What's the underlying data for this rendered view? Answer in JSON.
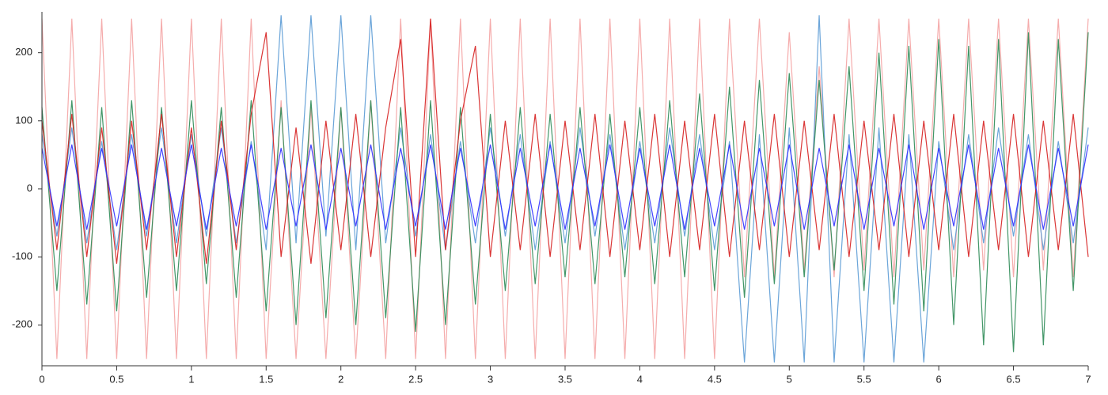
{
  "chart_data": {
    "type": "line",
    "x": [
      0,
      0.1,
      0.2,
      0.3,
      0.4,
      0.5,
      0.6,
      0.7,
      0.8,
      0.9,
      1,
      1.1,
      1.2,
      1.3,
      1.4,
      1.5,
      1.6,
      1.7,
      1.8,
      1.9,
      2,
      2.1,
      2.2,
      2.3,
      2.4,
      2.5,
      2.6,
      2.7,
      2.8,
      2.9,
      3,
      3.1,
      3.2,
      3.3,
      3.4,
      3.5,
      3.6,
      3.7,
      3.8,
      3.9,
      4,
      4.1,
      4.2,
      4.3,
      4.4,
      4.5,
      4.6,
      4.7,
      4.8,
      4.9,
      5,
      5.1,
      5.2,
      5.3,
      5.4,
      5.5,
      5.6,
      5.7,
      5.8,
      5.9,
      6,
      6.1,
      6.2,
      6.3,
      6.4,
      6.5,
      6.6,
      6.7,
      6.8,
      6.9,
      7
    ],
    "series": [
      {
        "color": "#f4a3a3",
        "values": [
          250,
          -250,
          250,
          -250,
          250,
          -250,
          250,
          -250,
          250,
          -250,
          250,
          -250,
          250,
          -250,
          250,
          -250,
          130,
          -250,
          120,
          -250,
          120,
          -250,
          130,
          -250,
          250,
          -250,
          250,
          -250,
          250,
          -250,
          250,
          -250,
          250,
          -250,
          250,
          -250,
          250,
          -250,
          250,
          -250,
          250,
          -250,
          250,
          -250,
          250,
          -250,
          250,
          -130,
          250,
          -130,
          230,
          -120,
          180,
          -130,
          250,
          -120,
          250,
          -130,
          250,
          -120,
          250,
          -130,
          250,
          -120,
          250,
          -130,
          250,
          -120,
          250,
          -130,
          250
        ]
      },
      {
        "color": "#5b9bd5",
        "values": [
          80,
          -70,
          90,
          -80,
          70,
          -90,
          80,
          -70,
          90,
          -80,
          80,
          -70,
          90,
          -80,
          70,
          -90,
          255,
          -80,
          255,
          -70,
          255,
          -90,
          255,
          -80,
          90,
          -70,
          80,
          -90,
          70,
          -80,
          90,
          -70,
          80,
          -90,
          70,
          -80,
          90,
          -70,
          80,
          -90,
          70,
          -80,
          90,
          -70,
          80,
          -90,
          70,
          -255,
          80,
          -255,
          90,
          -255,
          255,
          -255,
          80,
          -255,
          90,
          -255,
          80,
          -255,
          70,
          -90,
          80,
          -80,
          90,
          -70,
          80,
          -90,
          70,
          -80,
          90
        ]
      },
      {
        "color": "#2e8b57",
        "values": [
          120,
          -150,
          130,
          -170,
          120,
          -180,
          130,
          -160,
          120,
          -150,
          130,
          -140,
          120,
          -160,
          130,
          -180,
          120,
          -200,
          130,
          -190,
          120,
          -200,
          130,
          -190,
          120,
          -210,
          130,
          -200,
          120,
          -170,
          110,
          -150,
          120,
          -140,
          110,
          -130,
          120,
          -140,
          110,
          -130,
          120,
          -140,
          130,
          -130,
          140,
          -150,
          150,
          -160,
          160,
          -140,
          170,
          -130,
          160,
          -120,
          180,
          -150,
          200,
          -170,
          210,
          -180,
          220,
          -200,
          210,
          -230,
          220,
          -240,
          230,
          -230,
          220,
          -150,
          230
        ]
      },
      {
        "color": "#d62020",
        "values": [
          100,
          -90,
          110,
          -100,
          90,
          -110,
          100,
          -90,
          110,
          -100,
          90,
          -110,
          100,
          -90,
          110,
          230,
          -100,
          90,
          -110,
          100,
          -90,
          110,
          -100,
          90,
          220,
          -100,
          250,
          -90,
          100,
          210,
          -100,
          100,
          -90,
          110,
          -100,
          100,
          -90,
          110,
          -100,
          100,
          -90,
          110,
          -100,
          100,
          -90,
          110,
          -100,
          100,
          -90,
          110,
          -100,
          100,
          -90,
          110,
          -100,
          100,
          -90,
          110,
          -100,
          100,
          -90,
          110,
          -100,
          100,
          -90,
          110,
          -100,
          100,
          -90,
          110,
          -100
        ]
      },
      {
        "color": "#3030ff",
        "values": [
          60,
          -55,
          65,
          -60,
          60,
          -55,
          65,
          -60,
          60,
          -55,
          65,
          -60,
          60,
          -55,
          65,
          -60,
          60,
          -55,
          65,
          -60,
          60,
          -55,
          65,
          -60,
          60,
          -55,
          65,
          -60,
          60,
          -55,
          65,
          -60,
          60,
          -55,
          65,
          -60,
          60,
          -55,
          65,
          -60,
          60,
          -55,
          65,
          -60,
          60,
          -55,
          65,
          -60,
          60,
          -55,
          65,
          -60,
          60,
          -55,
          65,
          -60,
          60,
          -55,
          65,
          -60,
          60,
          -55,
          65,
          -60,
          60,
          -55,
          65,
          -60,
          60,
          -55,
          65
        ]
      }
    ],
    "xlim": [
      0,
      7
    ],
    "xticks": [
      0,
      0.5,
      1,
      1.5,
      2,
      2.5,
      3,
      3.5,
      4,
      4.5,
      5,
      5.5,
      6,
      6.5,
      7
    ],
    "ylim": [
      -260,
      260
    ],
    "yticks": [
      -200,
      -100,
      0,
      100,
      200
    ]
  }
}
